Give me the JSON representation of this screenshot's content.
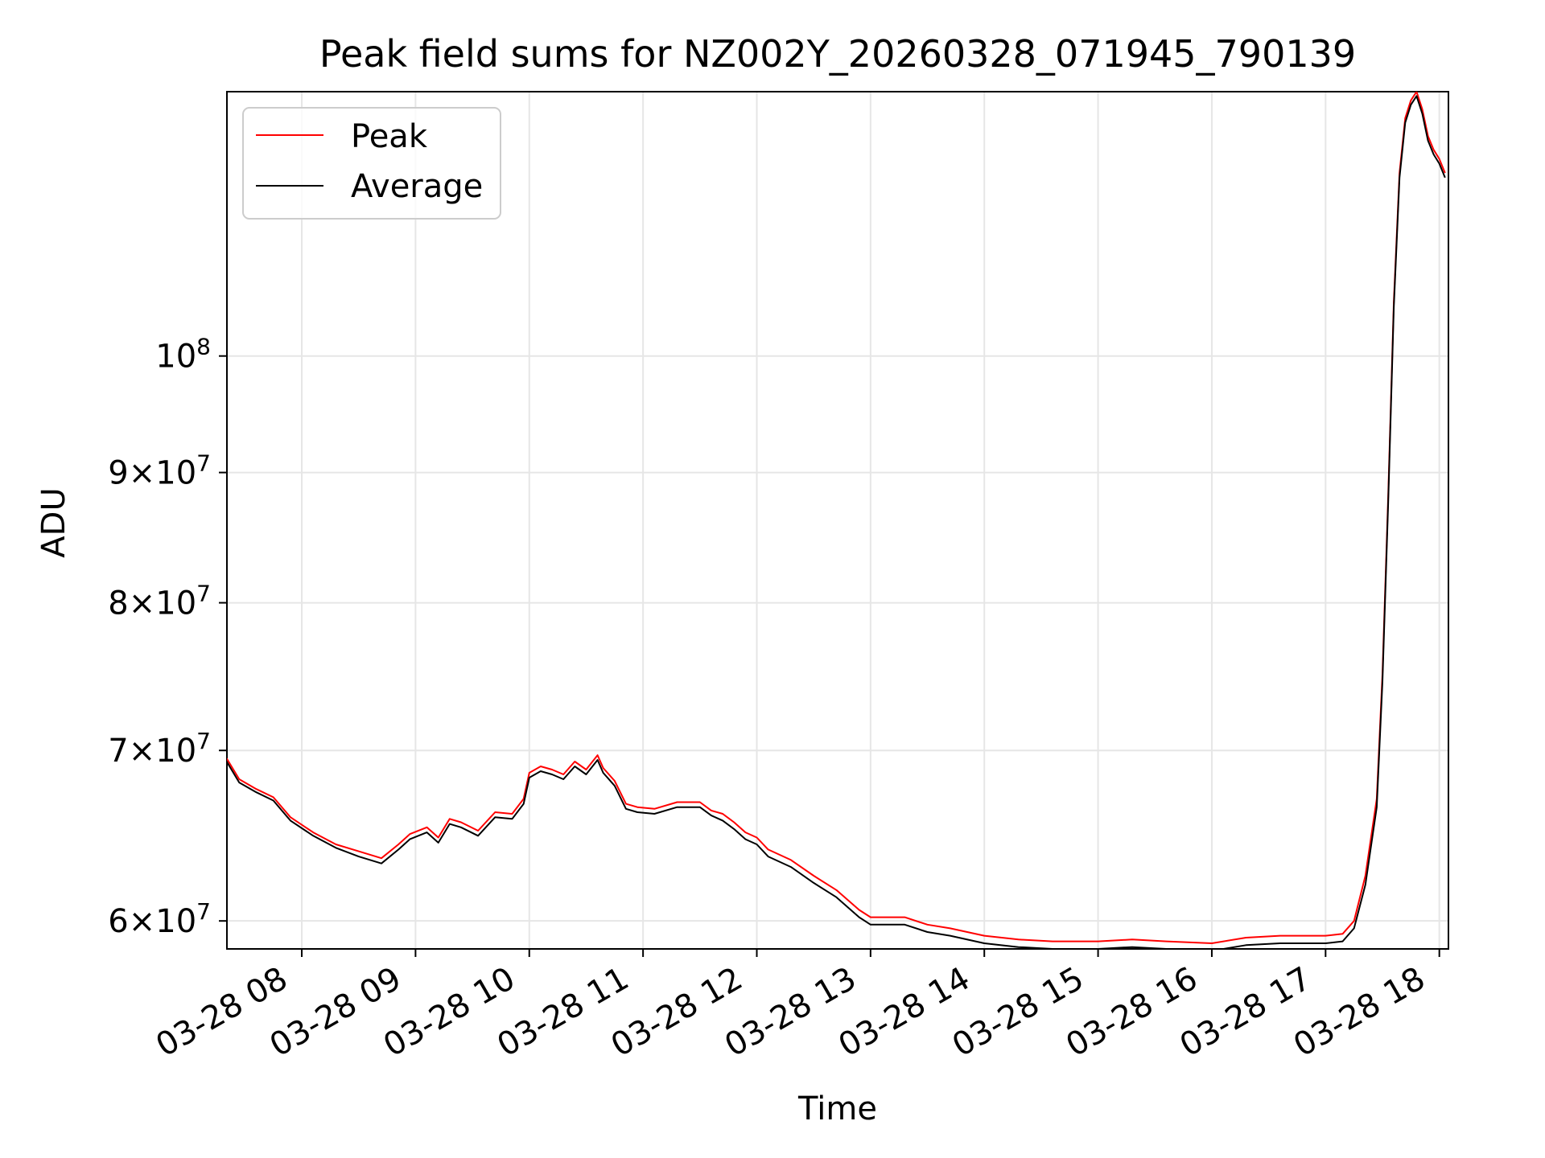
{
  "chart_data": {
    "type": "line",
    "title": "Peak field sums for NZ002Y_20260328_071945_790139",
    "xlabel": "Time",
    "ylabel": "ADU",
    "y_scale": "log",
    "ylim": [
      58500000,
      127000000
    ],
    "xlim": [
      7.342,
      18.08
    ],
    "x_ticks": [
      {
        "value": 8,
        "label": "03-28 08"
      },
      {
        "value": 9,
        "label": "03-28 09"
      },
      {
        "value": 10,
        "label": "03-28 10"
      },
      {
        "value": 11,
        "label": "03-28 11"
      },
      {
        "value": 12,
        "label": "03-28 12"
      },
      {
        "value": 13,
        "label": "03-28 13"
      },
      {
        "value": 14,
        "label": "03-28 14"
      },
      {
        "value": 15,
        "label": "03-28 15"
      },
      {
        "value": 16,
        "label": "03-28 16"
      },
      {
        "value": 17,
        "label": "03-28 17"
      },
      {
        "value": 18,
        "label": "03-28 18"
      }
    ],
    "y_ticks": [
      {
        "value": 60000000,
        "mant": "6",
        "exp": "7"
      },
      {
        "value": 70000000,
        "mant": "7",
        "exp": "7"
      },
      {
        "value": 80000000,
        "mant": "8",
        "exp": "7"
      },
      {
        "value": 90000000,
        "mant": "9",
        "exp": "7"
      },
      {
        "value": 100000000,
        "mant": "",
        "exp": "8"
      }
    ],
    "grid": true,
    "legend_position": "upper-left",
    "series": [
      {
        "name": "Peak",
        "color": "#ff0000",
        "x": [
          7.34,
          7.45,
          7.6,
          7.75,
          7.9,
          8.1,
          8.3,
          8.5,
          8.7,
          8.85,
          8.95,
          9.1,
          9.2,
          9.3,
          9.4,
          9.55,
          9.7,
          9.85,
          9.95,
          10.0,
          10.1,
          10.2,
          10.3,
          10.4,
          10.5,
          10.6,
          10.65,
          10.75,
          10.85,
          10.95,
          11.1,
          11.3,
          11.5,
          11.6,
          11.7,
          11.8,
          11.9,
          12.0,
          12.1,
          12.3,
          12.5,
          12.7,
          12.9,
          13.0,
          13.1,
          13.3,
          13.5,
          13.7,
          14.0,
          14.3,
          14.6,
          15.0,
          15.3,
          15.6,
          16.0,
          16.3,
          16.6,
          17.0,
          17.15,
          17.25,
          17.35,
          17.45,
          17.5,
          17.55,
          17.6,
          17.65,
          17.7,
          17.75,
          17.8,
          17.85,
          17.9,
          17.95,
          18.0,
          18.05
        ],
        "values": [
          69500000,
          68200000,
          67600000,
          67100000,
          65900000,
          65000000,
          64300000,
          63900000,
          63500000,
          64300000,
          64900000,
          65300000,
          64700000,
          65800000,
          65600000,
          65100000,
          66200000,
          66100000,
          67000000,
          68600000,
          69000000,
          68800000,
          68500000,
          69300000,
          68800000,
          69700000,
          68900000,
          68100000,
          66700000,
          66500000,
          66400000,
          66800000,
          66800000,
          66300000,
          66100000,
          65600000,
          65000000,
          64700000,
          64000000,
          63400000,
          62500000,
          61700000,
          60600000,
          60200000,
          60200000,
          60200000,
          59800000,
          59600000,
          59200000,
          59000000,
          58900000,
          58900000,
          59000000,
          58900000,
          58800000,
          59100000,
          59200000,
          59200000,
          59300000,
          60000000,
          62500000,
          67000000,
          75000000,
          88000000,
          105000000,
          118000000,
          124000000,
          126000000,
          127000000,
          125000000,
          122000000,
          120500000,
          119500000,
          118000000
        ]
      },
      {
        "name": "Average",
        "color": "#000000",
        "x": [
          7.34,
          7.45,
          7.6,
          7.75,
          7.9,
          8.1,
          8.3,
          8.5,
          8.7,
          8.85,
          8.95,
          9.1,
          9.2,
          9.3,
          9.4,
          9.55,
          9.7,
          9.85,
          9.95,
          10.0,
          10.1,
          10.2,
          10.3,
          10.4,
          10.5,
          10.6,
          10.65,
          10.75,
          10.85,
          10.95,
          11.1,
          11.3,
          11.5,
          11.6,
          11.7,
          11.8,
          11.9,
          12.0,
          12.1,
          12.3,
          12.5,
          12.7,
          12.9,
          13.0,
          13.1,
          13.3,
          13.5,
          13.7,
          14.0,
          14.3,
          14.6,
          15.0,
          15.3,
          15.6,
          16.0,
          16.3,
          16.6,
          17.0,
          17.15,
          17.25,
          17.35,
          17.45,
          17.5,
          17.55,
          17.6,
          17.65,
          17.7,
          17.75,
          17.8,
          17.85,
          17.9,
          17.95,
          18.0,
          18.05
        ],
        "values": [
          69300000,
          68000000,
          67400000,
          66900000,
          65700000,
          64800000,
          64100000,
          63600000,
          63200000,
          64000000,
          64600000,
          65000000,
          64400000,
          65500000,
          65300000,
          64800000,
          65900000,
          65800000,
          66700000,
          68300000,
          68700000,
          68500000,
          68200000,
          69000000,
          68500000,
          69400000,
          68600000,
          67800000,
          66400000,
          66200000,
          66100000,
          66500000,
          66500000,
          66000000,
          65700000,
          65200000,
          64600000,
          64300000,
          63600000,
          63000000,
          62100000,
          61300000,
          60200000,
          59800000,
          59800000,
          59800000,
          59400000,
          59200000,
          58800000,
          58600000,
          58500000,
          58500000,
          58600000,
          58500000,
          58400000,
          58700000,
          58800000,
          58800000,
          58900000,
          59600000,
          62000000,
          66500000,
          74500000,
          87500000,
          104500000,
          117500000,
          123500000,
          125500000,
          126500000,
          124500000,
          121500000,
          120000000,
          119000000,
          117500000
        ]
      }
    ]
  }
}
